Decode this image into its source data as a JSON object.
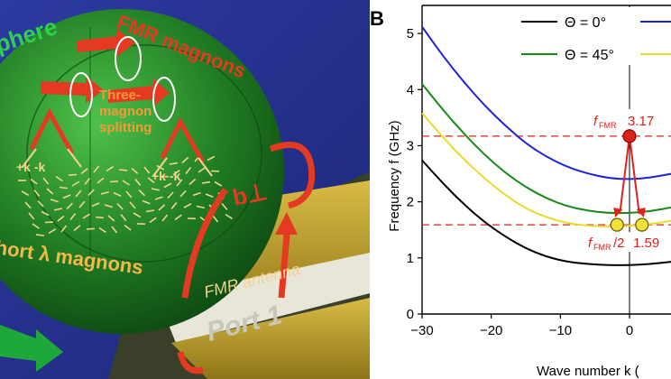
{
  "illustration": {
    "sphere_label": "phere",
    "fmr_magnons_label": "FMR magnons",
    "three_magnon_label": [
      "Three-",
      "magnon",
      "splitting"
    ],
    "k_pair_left": "+k -k",
    "k_pair_right": "+k -k",
    "short_magnons_label": "hort λ magnons",
    "b_perp_label": "b⊥",
    "antenna_label": "FMR antenna",
    "port_label": "Port 1",
    "colors": {
      "background": "#25308f",
      "sphere": "#2a8a2a",
      "antenna": "#b89a25",
      "arrow": "#e43a22",
      "text_orange": "#f29a3a"
    }
  },
  "panel_label": "B",
  "chart_data": {
    "type": "line",
    "xlabel": "Wave number k (",
    "ylabel": "Frequency f (GHz)",
    "xlim": [
      -30,
      6
    ],
    "ylim": [
      0,
      5.5
    ],
    "xticks": [
      -30,
      -20,
      -10,
      0
    ],
    "yticks": [
      0,
      1,
      2,
      3,
      4,
      5
    ],
    "x": [
      -30,
      -27,
      -24,
      -21,
      -18,
      -15,
      -12,
      -9,
      -6,
      -3,
      0,
      3,
      6
    ],
    "series": [
      {
        "name": "Θ = 0°",
        "color": "#000000",
        "values": [
          2.74,
          2.33,
          1.96,
          1.64,
          1.38,
          1.17,
          1.02,
          0.93,
          0.89,
          0.87,
          0.87,
          0.89,
          0.93
        ]
      },
      {
        "name": "",
        "color": "#1e22d9",
        "values": [
          5.12,
          4.6,
          4.14,
          3.72,
          3.36,
          3.04,
          2.8,
          2.62,
          2.5,
          2.42,
          2.4,
          2.43,
          2.5
        ]
      },
      {
        "name": "Θ = 45°",
        "color": "#178a17",
        "values": [
          4.1,
          3.64,
          3.22,
          2.84,
          2.52,
          2.26,
          2.06,
          1.92,
          1.84,
          1.8,
          1.8,
          1.83,
          1.9
        ]
      },
      {
        "name": "",
        "color": "#e6dc2a",
        "values": [
          3.58,
          3.15,
          2.76,
          2.42,
          2.12,
          1.88,
          1.72,
          1.62,
          1.57,
          1.56,
          1.57,
          1.6,
          1.66
        ]
      }
    ],
    "annotations": {
      "f_fmr_label": "f",
      "f_fmr_sub": "FMR",
      "f_fmr_value": "3.17",
      "f_half_label": "f",
      "f_half_sub": "FMR",
      "f_half_suffix": "/2",
      "f_half_value": "1.59"
    },
    "points": {
      "fmr": {
        "x": 0,
        "y": 3.17
      },
      "split_left": {
        "x": -1.8,
        "y": 1.59
      },
      "split_right": {
        "x": 1.8,
        "y": 1.59
      }
    },
    "dashed_lines": [
      3.17,
      1.59
    ]
  }
}
